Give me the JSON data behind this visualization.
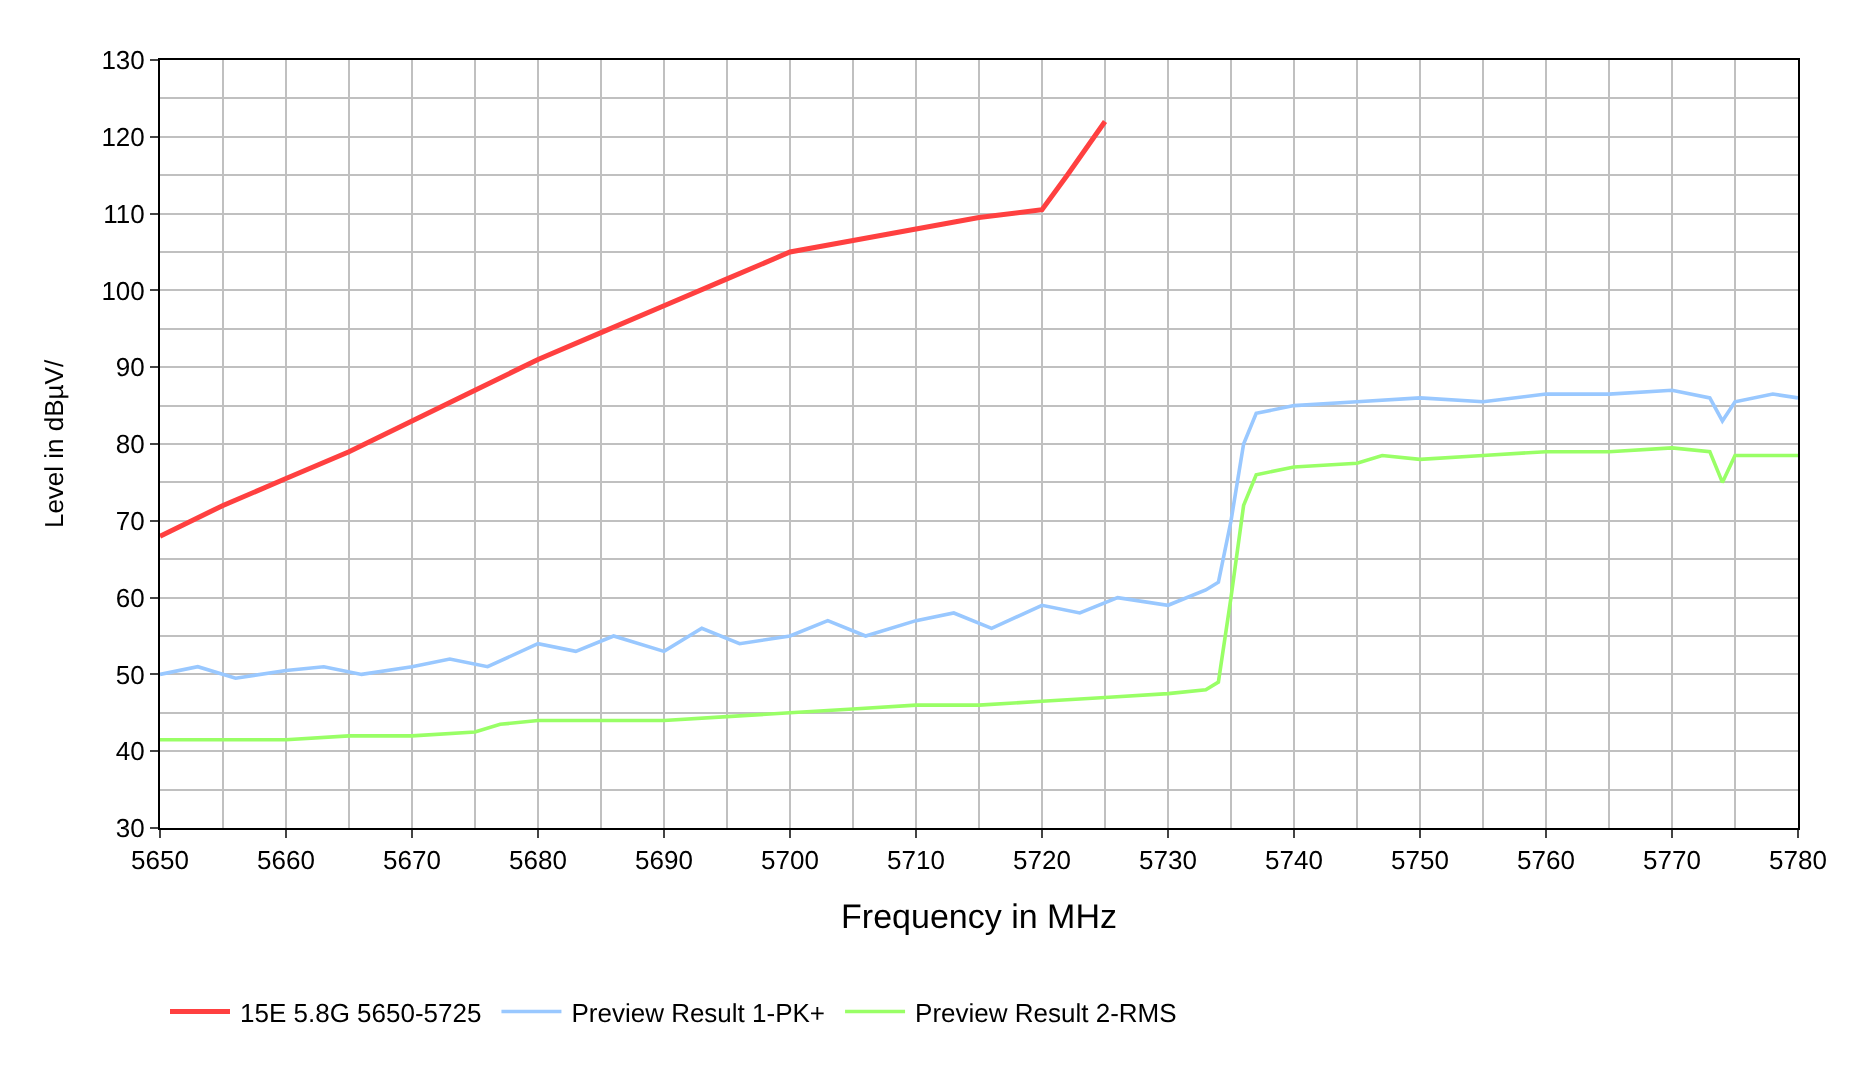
{
  "chart_data": {
    "type": "line",
    "xlabel": "Frequency in MHz",
    "ylabel": "Level in dBµV/",
    "xlim": [
      5650,
      5780
    ],
    "xticks": [
      5650,
      5660,
      5670,
      5680,
      5690,
      5700,
      5710,
      5720,
      5730,
      5740,
      5750,
      5760,
      5770,
      5780
    ],
    "ylim": [
      30,
      130
    ],
    "yticks": [
      30,
      40,
      50,
      60,
      70,
      80,
      90,
      100,
      110,
      120,
      130
    ],
    "grid": true,
    "legend": "bottom",
    "marker": "none",
    "line_style": "solid",
    "series": [
      {
        "name": "15E 5.8G 5650-5725",
        "color": "#ff4040",
        "x": [
          5650,
          5655,
          5660,
          5665,
          5670,
          5675,
          5680,
          5685,
          5690,
          5695,
          5700,
          5705,
          5710,
          5715,
          5720,
          5722,
          5725
        ],
        "values": [
          68,
          72,
          75.5,
          79,
          83,
          87,
          91,
          94.5,
          98,
          101.5,
          105,
          106.5,
          108,
          109.5,
          110.5,
          115,
          122
        ]
      },
      {
        "name": "Preview Result 1-PK+",
        "color": "#99c8ff",
        "x": [
          5650,
          5653,
          5656,
          5660,
          5663,
          5666,
          5670,
          5673,
          5676,
          5680,
          5683,
          5686,
          5690,
          5693,
          5696,
          5700,
          5703,
          5706,
          5710,
          5713,
          5716,
          5720,
          5723,
          5726,
          5730,
          5733,
          5734,
          5735,
          5736,
          5737,
          5740,
          5745,
          5750,
          5755,
          5760,
          5765,
          5770,
          5773,
          5774,
          5775,
          5778,
          5780
        ],
        "values": [
          50,
          51,
          49.5,
          50.5,
          51,
          50,
          51,
          52,
          51,
          54,
          53,
          55,
          53,
          56,
          54,
          55,
          57,
          55,
          57,
          58,
          56,
          59,
          58,
          60,
          59,
          61,
          62,
          70,
          80,
          84,
          85,
          85.5,
          86,
          85.5,
          86.5,
          86.5,
          87,
          86,
          83,
          85.5,
          86.5,
          86
        ]
      },
      {
        "name": "Preview Result 2-RMS",
        "color": "#99ff66",
        "x": [
          5650,
          5655,
          5660,
          5665,
          5670,
          5675,
          5677,
          5680,
          5685,
          5690,
          5695,
          5700,
          5705,
          5710,
          5715,
          5720,
          5725,
          5730,
          5733,
          5734,
          5735,
          5736,
          5737,
          5740,
          5745,
          5747,
          5750,
          5755,
          5760,
          5765,
          5770,
          5773,
          5774,
          5775,
          5778,
          5780
        ],
        "values": [
          41.5,
          41.5,
          41.5,
          42,
          42,
          42.5,
          43.5,
          44,
          44,
          44,
          44.5,
          45,
          45.5,
          46,
          46,
          46.5,
          47,
          47.5,
          48,
          49,
          60,
          72,
          76,
          77,
          77.5,
          78.5,
          78,
          78.5,
          79,
          79,
          79.5,
          79,
          75,
          78.5,
          78.5,
          78.5
        ]
      }
    ]
  }
}
